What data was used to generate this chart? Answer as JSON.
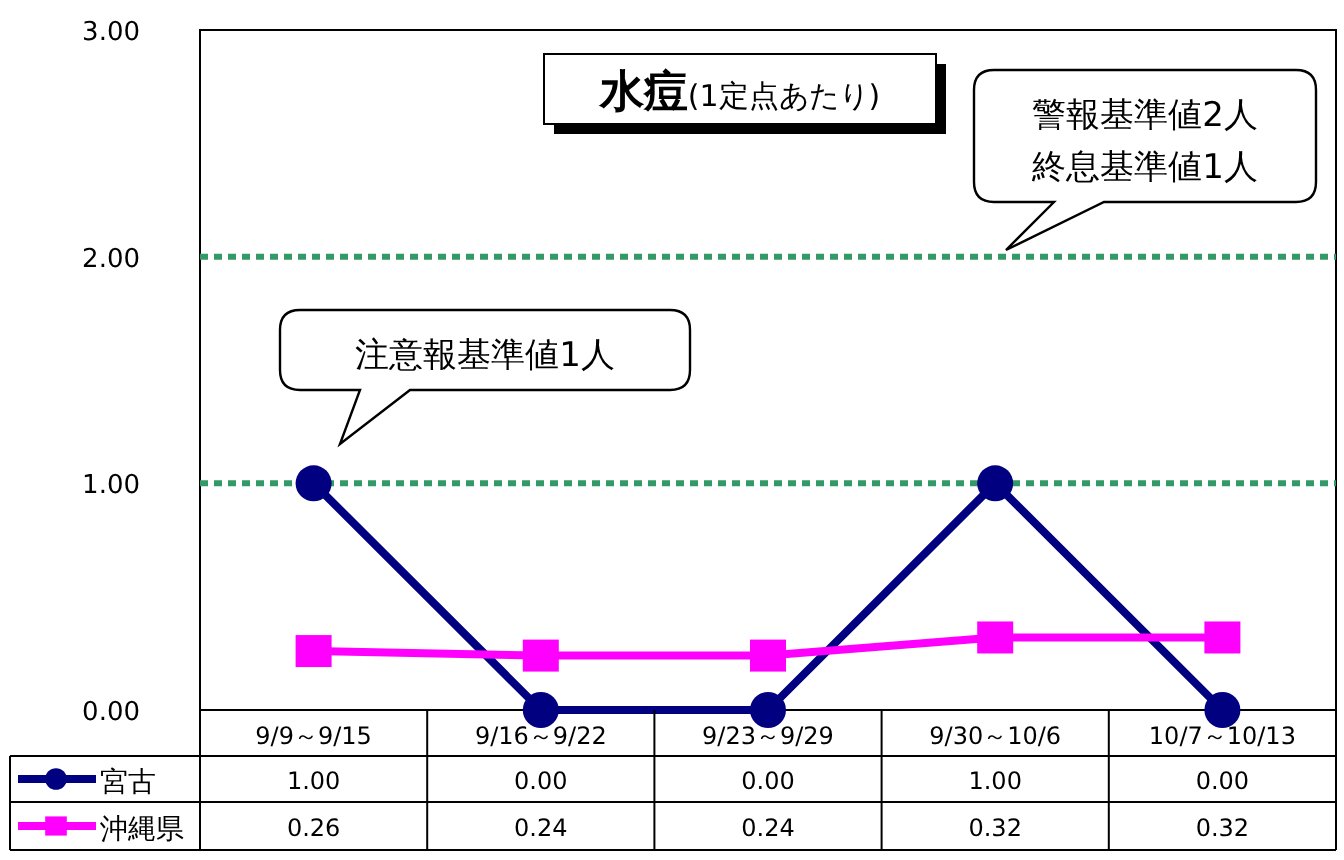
{
  "chart_data": {
    "type": "line",
    "title": "水痘",
    "subtitle": "(1定点あたり)",
    "categories": [
      "9/9～9/15",
      "9/16～9/22",
      "9/23～9/29",
      "9/30～10/6",
      "10/7～10/13"
    ],
    "series": [
      {
        "name": "宮古",
        "color": "#000080",
        "marker": "circle",
        "values": [
          1.0,
          0.0,
          0.0,
          1.0,
          0.0
        ],
        "value_labels": [
          "1.00",
          "0.00",
          "0.00",
          "1.00",
          "0.00"
        ]
      },
      {
        "name": "沖縄県",
        "color": "#ff00ff",
        "marker": "square",
        "values": [
          0.26,
          0.24,
          0.24,
          0.32,
          0.32
        ],
        "value_labels": [
          "0.26",
          "0.24",
          "0.24",
          "0.32",
          "0.32"
        ]
      }
    ],
    "ylim": [
      0,
      3
    ],
    "yticks": [
      {
        "value": 0,
        "label": "0.00"
      },
      {
        "value": 1,
        "label": "1.00"
      },
      {
        "value": 2,
        "label": "2.00"
      },
      {
        "value": 3,
        "label": "3.00"
      }
    ],
    "ref_lines": [
      {
        "axis": "y",
        "value": 1,
        "color": "#339966",
        "line_style": "dotted"
      },
      {
        "axis": "y",
        "value": 2,
        "color": "#339966",
        "line_style": "dotted"
      }
    ],
    "annotations": [
      "注意報基準値1人",
      "警報基準値2人終息基準値1人"
    ],
    "legend": "bottom",
    "grid": false
  }
}
